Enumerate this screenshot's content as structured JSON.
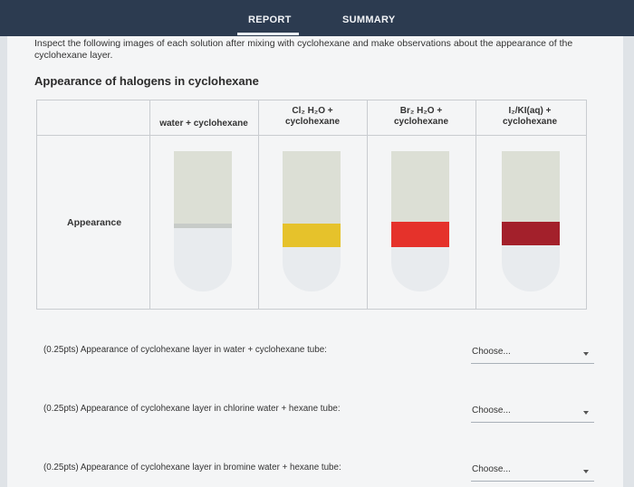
{
  "tabs": [
    {
      "label": "REPORT"
    },
    {
      "label": "SUMMARY"
    }
  ],
  "instructions": "Inspect the following images of each solution after mixing with cyclohexane and make observations about the appearance of the cyclohexane layer.",
  "section_title": "Appearance of halogens in cyclohexane",
  "table": {
    "headers": [
      {
        "line1": "water + cyclohexane",
        "line2": ""
      },
      {
        "line1": "Cl₂ H₂O +",
        "line2": "cyclohexane"
      },
      {
        "line1": "Br₂ H₂O +",
        "line2": "cyclohexane"
      },
      {
        "line1": "I₂/KI(aq) +",
        "line2": "cyclohexane"
      }
    ],
    "row_label": "Appearance"
  },
  "tubes": [
    {
      "name": "water",
      "band_color": "#c7cbc8"
    },
    {
      "name": "chlorine",
      "band_color": "#e6c22b"
    },
    {
      "name": "bromine",
      "band_color": "#e5322b"
    },
    {
      "name": "iodine",
      "band_color": "#a3202b"
    }
  ],
  "questions": [
    {
      "text": "(0.25pts)  Appearance of cyclohexane layer in water + cyclohexane tube:",
      "selected": "Choose..."
    },
    {
      "text": "(0.25pts)  Appearance of cyclohexane layer in chlorine water + hexane tube:",
      "selected": "Choose..."
    },
    {
      "text": "(0.25pts)  Appearance of cyclohexane layer in bromine water + hexane tube:",
      "selected": "Choose..."
    }
  ]
}
